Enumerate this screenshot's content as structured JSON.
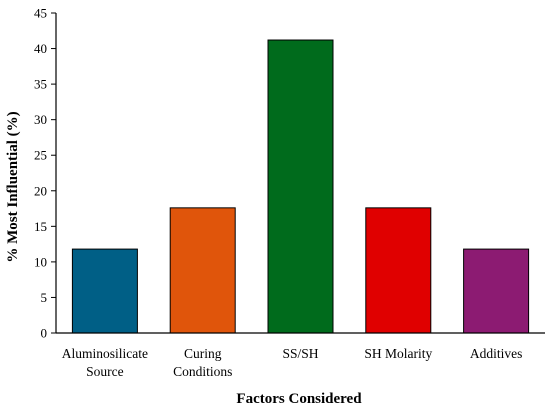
{
  "chart_data": {
    "type": "bar",
    "xlabel": "Factors Considered",
    "ylabel": "% Most Influential (%)",
    "ylim": [
      0,
      45
    ],
    "yticks": [
      0,
      5,
      10,
      15,
      20,
      25,
      30,
      35,
      40,
      45
    ],
    "grid": false,
    "legend": "none",
    "categories": [
      [
        "Aluminosilicate",
        "Source"
      ],
      [
        "Curing",
        "Conditions"
      ],
      [
        "SS/SH"
      ],
      [
        "SH Molarity"
      ],
      [
        "Additives"
      ]
    ],
    "values": [
      11.8,
      17.6,
      41.2,
      17.6,
      11.8
    ],
    "colors": [
      "#005f86",
      "#e0550b",
      "#006b1c",
      "#e00000",
      "#8c1b72"
    ]
  }
}
